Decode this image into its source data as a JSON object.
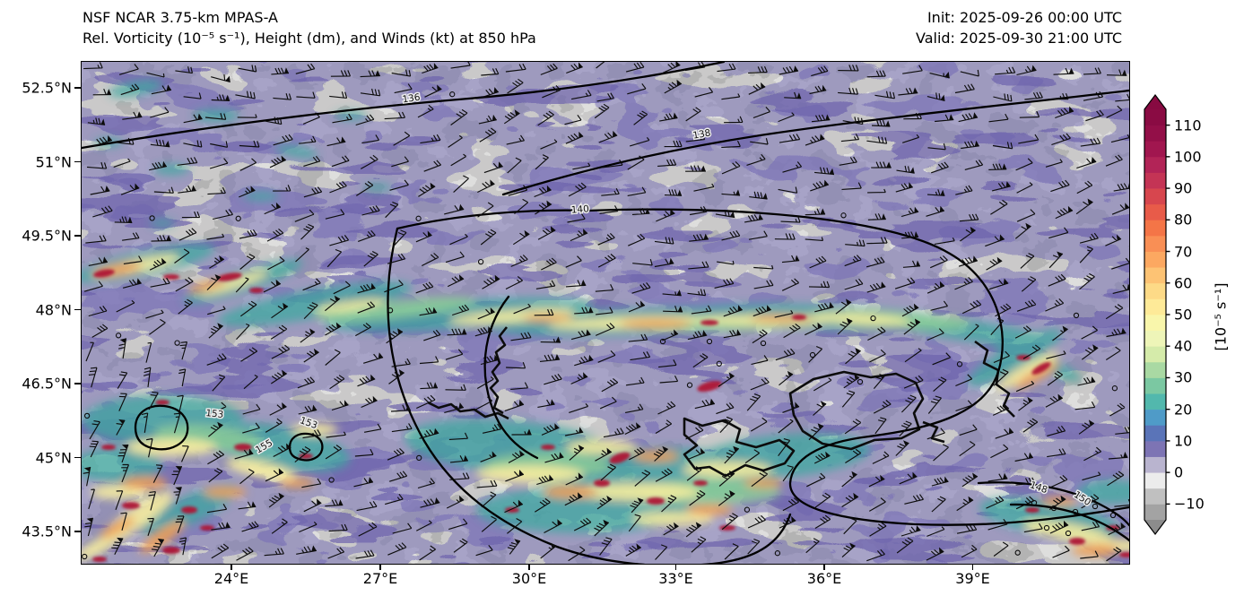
{
  "header": {
    "model_line": "NSF NCAR 3.75-km MPAS-A",
    "field_line": "Rel. Vorticity (10⁻⁵ s⁻¹), Height (dm), and Winds (kt) at 850 hPa",
    "init_line": "Init: 2025-09-26 00:00 UTC",
    "valid_line": "Valid: 2025-09-30 21:00 UTC"
  },
  "chart_data": {
    "type": "heatmap",
    "title": "NSF NCAR 3.75-km MPAS-A",
    "subtitle": "Rel. Vorticity (10⁻⁵ s⁻¹), Height (dm), and Winds (kt) at 850 hPa",
    "init_time": "2025-09-26 00:00 UTC",
    "valid_time": "2025-09-30 21:00 UTC",
    "level_hPa": 850,
    "shaded_field": "Relative vorticity",
    "shaded_units": "10⁻⁵ s⁻¹",
    "contour_field": "Geopotential height",
    "contour_units": "dm",
    "wind_field": "Wind barbs",
    "wind_units": "kt",
    "x_axis": {
      "tick_labels": [
        "24°E",
        "27°E",
        "30°E",
        "33°E",
        "36°E",
        "39°E"
      ]
    },
    "y_axis": {
      "tick_labels": [
        "52.5°N",
        "51°N",
        "49.5°N",
        "48°N",
        "46.5°N",
        "45°N",
        "43.5°N"
      ]
    },
    "contour_labels": [
      "136",
      "138",
      "140",
      "153",
      "155",
      "153",
      "148",
      "150"
    ],
    "colorbar": {
      "label": "[10⁻⁵ s⁻¹]",
      "tick_values": [
        110,
        100,
        90,
        80,
        70,
        60,
        50,
        40,
        30,
        20,
        10,
        0,
        -10
      ],
      "tick_labels": [
        "110",
        "100",
        "90",
        "80",
        "70",
        "60",
        "50",
        "40",
        "30",
        "20",
        "10",
        "0",
        "−10"
      ],
      "value_range": [
        -15,
        115
      ],
      "under_color": "#8c8c8c",
      "over_color": "#870a41",
      "segment_colors": [
        "#a3a3a3",
        "#c0c0c0",
        "#ececec",
        "#b9b4cf",
        "#7d74b4",
        "#5a74b8",
        "#4f9bc8",
        "#52b8ad",
        "#7bc8a2",
        "#a9d9a3",
        "#d5ebaa",
        "#eef5b8",
        "#f9f6ab",
        "#feea98",
        "#fdda87",
        "#fdc374",
        "#fca861",
        "#f98f55",
        "#f47547",
        "#e85b49",
        "#d7464e",
        "#c43455",
        "#b22457",
        "#a1164f",
        "#930f48",
        "#8a0b43"
      ]
    }
  }
}
